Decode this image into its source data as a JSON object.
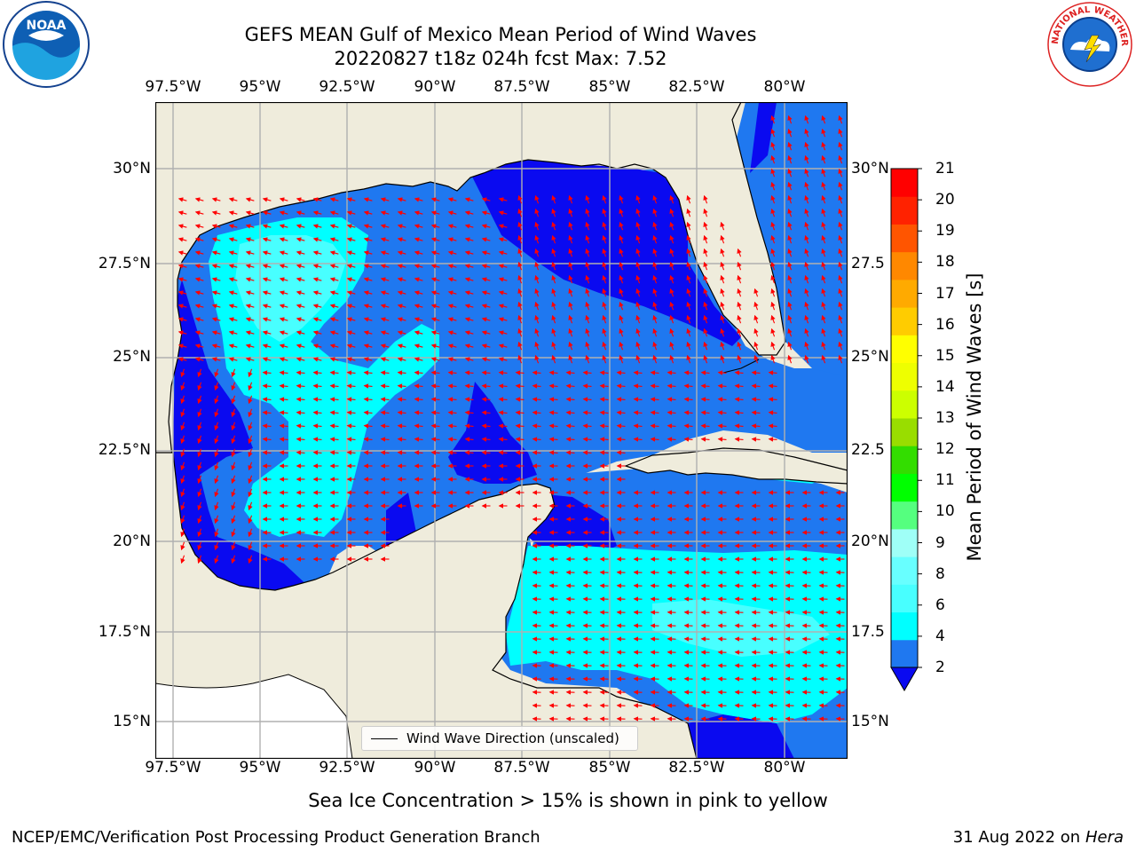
{
  "title": {
    "line1": "GEFS MEAN Gulf of Mexico Mean Period of Wind Waves",
    "line2": "20220827 t18z 024h fcst   Max: 7.52"
  },
  "map": {
    "lon_ticks": [
      "97.5°W",
      "95°W",
      "92.5°W",
      "90°W",
      "87.5°W",
      "85°W",
      "82.5°W",
      "80°W"
    ],
    "lat_ticks_left": [
      "30°N",
      "27.5°N",
      "25°N",
      "22.5°N",
      "20°N",
      "17.5°N",
      "15°N"
    ],
    "lat_ticks_right": [
      "30°N",
      "27.5",
      "25°N",
      "22.5",
      "20°N",
      "17.5",
      "15°N"
    ],
    "lon_range": [
      -98,
      -78.2
    ],
    "lat_range": [
      14.0,
      31.8
    ],
    "colors": {
      "land": "#efecdc",
      "ocean_blue": "#1f78f0",
      "dark_blue": "#0a0af0",
      "cyan": "#00ffff",
      "light_cyan": "#48ffff",
      "pale_cyan": "#9ffff7",
      "arrow": "#ff0000",
      "grid": "#b0b0b0"
    }
  },
  "colorbar": {
    "label": "Mean Period of Wind Waves [s]",
    "ticks": [
      "2",
      "4",
      "6",
      "8",
      "9",
      "10",
      "11",
      "12",
      "13",
      "14",
      "15",
      "16",
      "17",
      "18",
      "19",
      "20",
      "21"
    ],
    "colors": [
      "#1f78f0",
      "#00ffff",
      "#48ffff",
      "#68ffff",
      "#9ffff7",
      "#55ff7f",
      "#00ff00",
      "#33dd00",
      "#99dd00",
      "#ccff00",
      "#eeff00",
      "#ffff00",
      "#ffcc00",
      "#ffaa00",
      "#ff8800",
      "#ff5500",
      "#ff2200",
      "#ff0000"
    ],
    "extend_color": "#0a0af0"
  },
  "legend": {
    "label": "Wind Wave Direction (unscaled)"
  },
  "note": "Sea Ice Concentration > 15% is shown in pink to yellow",
  "footer": {
    "left": "NCEP/EMC/Verification Post Processing Product Generation Branch",
    "right_date": "31 Aug 2022 on",
    "right_host": "Hera"
  },
  "logos": {
    "left_text": "NOAA",
    "right_text": "NATIONAL WEATHER SERVICE"
  }
}
